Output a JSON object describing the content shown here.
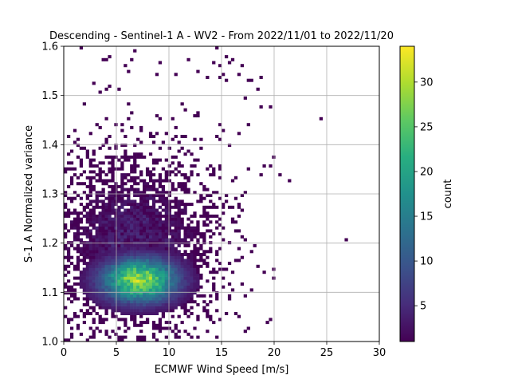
{
  "chart_data": {
    "type": "heatmap",
    "title": "Descending - Sentinel-1 A - WV2 - From 2022/11/01 to 2022/11/20",
    "xlabel": "ECMWF Wind Speed [m/s]",
    "ylabel": "S-1 A Normalized variance",
    "xlim": [
      0,
      30
    ],
    "ylim": [
      1.0,
      1.6
    ],
    "xticks": [
      "0",
      "5",
      "10",
      "15",
      "20",
      "25",
      "30"
    ],
    "yticks": [
      "1.0",
      "1.1",
      "1.2",
      "1.3",
      "1.4",
      "1.5",
      "1.6"
    ],
    "grid": true,
    "colormap": "viridis",
    "colorbar": {
      "label": "count",
      "range": [
        1,
        34
      ],
      "ticks": [
        "5",
        "10",
        "15",
        "20",
        "25",
        "30"
      ]
    },
    "peak": {
      "x": 7.2,
      "y": 1.125,
      "count": 34
    },
    "bins": {
      "x_count": 100,
      "y_count": 100
    }
  }
}
